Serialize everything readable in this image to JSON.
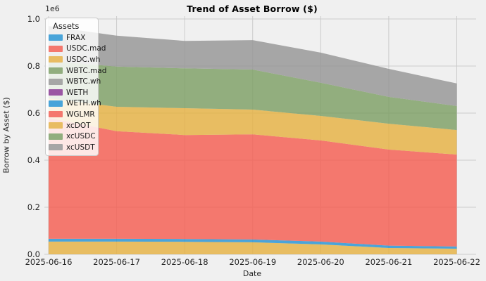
{
  "title": "Trend of Asset Borrow ($)",
  "axes": {
    "xlabel": "Date",
    "ylabel": "Borrow by Asset ($)",
    "offset_label": "1e6",
    "y_tick_labels": [
      "0.0",
      "0.2",
      "0.4",
      "0.6",
      "0.8",
      "1.0"
    ]
  },
  "legend": {
    "title": "Assets"
  },
  "colors": {
    "background": "#f0f0f0",
    "grid": "#cbcbcb",
    "tick_text": "#262626",
    "palette_base": [
      "#2091d4",
      "#f55a4e",
      "#e6b03f",
      "#7a9e62",
      "#949494",
      "#853090"
    ],
    "palette_swatch": [
      "#49a4d9",
      "#f4786e",
      "#e8bc62",
      "#91ae7e",
      "#a6a6a6",
      "#9a56a3"
    ],
    "fill_opacity": 0.8
  },
  "chart_data": {
    "type": "area",
    "stacked": true,
    "title": "Trend of Asset Borrow ($)",
    "xlabel": "Date",
    "ylabel": "Borrow by Asset ($)",
    "x": [
      "2025-06-16",
      "2025-06-17",
      "2025-06-18",
      "2025-06-19",
      "2025-06-20",
      "2025-06-21",
      "2025-06-22"
    ],
    "series": [
      {
        "name": "FRAX",
        "values": [
          0,
          0,
          0,
          0,
          0,
          0,
          0
        ]
      },
      {
        "name": "USDC.mad",
        "values": [
          0,
          0,
          0,
          0,
          0,
          0,
          0
        ]
      },
      {
        "name": "USDC.wh",
        "values": [
          54000,
          54000,
          53000,
          51000,
          42000,
          27000,
          24000
        ]
      },
      {
        "name": "WBTC.mad",
        "values": [
          0,
          0,
          0,
          0,
          0,
          0,
          0
        ]
      },
      {
        "name": "WBTC.wh",
        "values": [
          0,
          0,
          0,
          0,
          0,
          0,
          0
        ]
      },
      {
        "name": "WETH",
        "values": [
          0,
          0,
          0,
          0,
          0,
          0,
          0
        ]
      },
      {
        "name": "WETH.wh",
        "values": [
          12000,
          12000,
          12000,
          12000,
          12000,
          10000,
          9000
        ]
      },
      {
        "name": "WGLMR",
        "values": [
          514000,
          457000,
          442000,
          447000,
          430000,
          408000,
          391000
        ]
      },
      {
        "name": "xcDOT",
        "values": [
          83000,
          104000,
          114000,
          105000,
          104000,
          110000,
          104000
        ]
      },
      {
        "name": "xcUSDC",
        "values": [
          159000,
          171000,
          169000,
          170000,
          141000,
          114000,
          102000
        ]
      },
      {
        "name": "xcUSDT",
        "values": [
          148000,
          131000,
          117000,
          125000,
          128000,
          119000,
          96000
        ]
      }
    ],
    "ylim": [
      0,
      1000000
    ],
    "y_ticks": [
      0,
      200000,
      400000,
      600000,
      800000,
      1000000
    ],
    "grid": true,
    "legend_title": "Assets",
    "legend_position": "upper left",
    "totals_by_date": [
      970000,
      929000,
      907000,
      910000,
      857000,
      788000,
      726000
    ]
  }
}
